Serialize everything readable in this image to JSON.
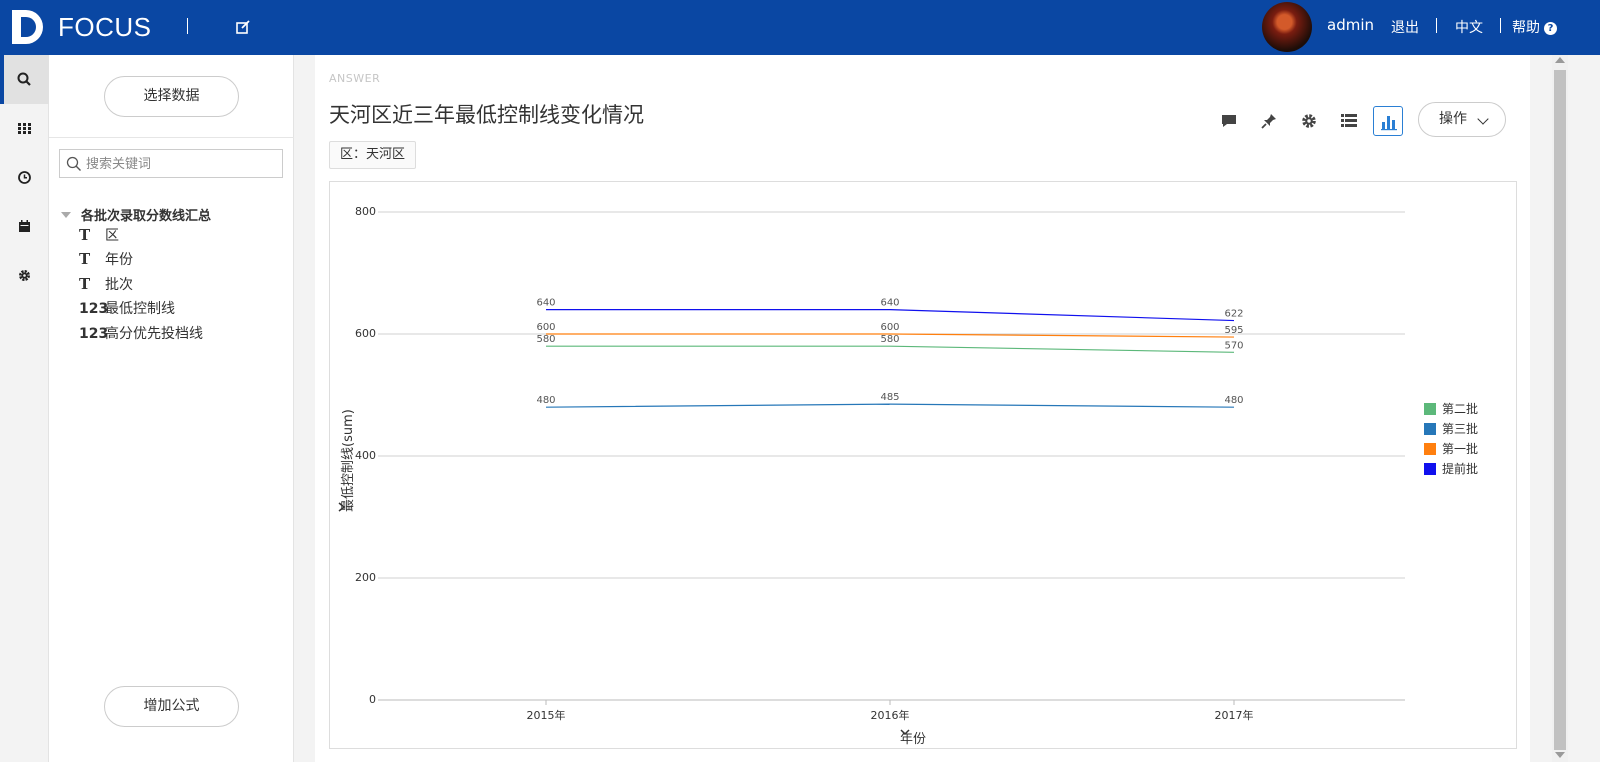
{
  "header": {
    "logo_text": "FOCUS",
    "user": "admin",
    "logout": "退出",
    "language": "中文",
    "help": "帮助",
    "brand_color": "#0a47a3"
  },
  "leftnav": {
    "items": [
      {
        "name": "search",
        "icon": "search-icon",
        "active": true
      },
      {
        "name": "apps",
        "icon": "grid-icon",
        "active": false
      },
      {
        "name": "history",
        "icon": "clock-icon",
        "active": false
      },
      {
        "name": "calendar",
        "icon": "calendar-icon",
        "active": false
      },
      {
        "name": "settings",
        "icon": "gear-icon",
        "active": false
      }
    ]
  },
  "datapanel": {
    "select_data": "选择数据",
    "search_placeholder": "搜索关键词",
    "table_name": "各批次录取分数线汇总",
    "fields": [
      {
        "type": "T",
        "label": "区"
      },
      {
        "type": "T",
        "label": "年份"
      },
      {
        "type": "T",
        "label": "批次"
      },
      {
        "type": "123",
        "label": "最低控制线"
      },
      {
        "type": "123",
        "label": "高分优先投档线"
      }
    ],
    "add_formula": "增加公式"
  },
  "main": {
    "answer_label": "ANSWER",
    "title": "天河区近三年最低控制线变化情况",
    "filter": "区：天河区",
    "operate": "操作",
    "toolbar_icons": [
      "comment-icon",
      "pin-icon",
      "gear-icon",
      "table-view-icon",
      "chart-view-icon"
    ]
  },
  "chart_data": {
    "type": "line",
    "categories": [
      "2015年",
      "2016年",
      "2017年"
    ],
    "xlabel": "年份",
    "ylabel": "最低控制线(sum)",
    "ylim": [
      0,
      800
    ],
    "yticks": [
      0,
      200,
      400,
      600,
      800
    ],
    "grid": true,
    "legend_position": "right",
    "series": [
      {
        "name": "第二批",
        "color": "#5cb87a",
        "values": [
          580,
          580,
          570
        ]
      },
      {
        "name": "第三批",
        "color": "#2677b8",
        "values": [
          480,
          485,
          480
        ]
      },
      {
        "name": "第一批",
        "color": "#ff7f0e",
        "values": [
          600,
          600,
          595
        ]
      },
      {
        "name": "提前批",
        "color": "#1010ee",
        "values": [
          640,
          640,
          622
        ]
      }
    ]
  }
}
